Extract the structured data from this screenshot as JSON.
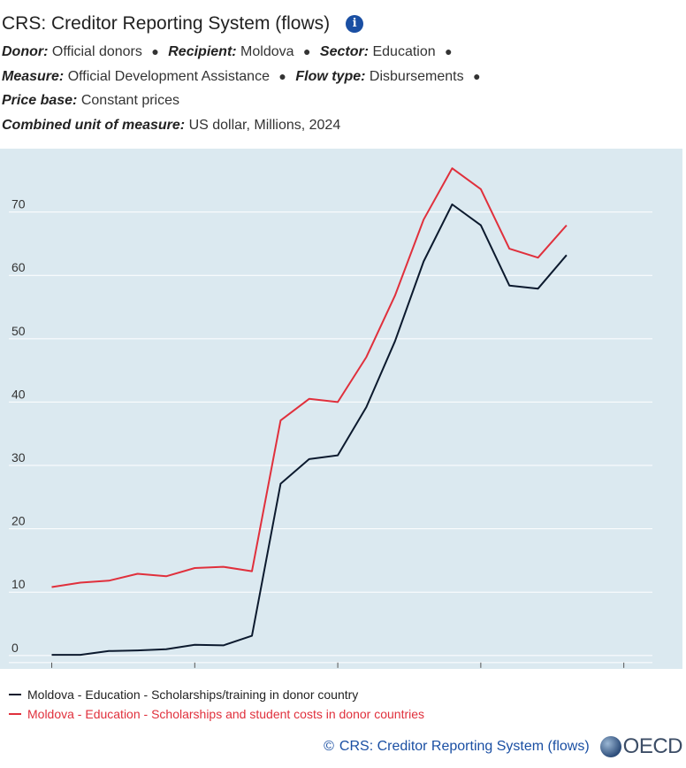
{
  "header": {
    "title": "CRS: Creditor Reporting System (flows)",
    "info_icon": "i",
    "filters_line1": [
      {
        "label": "Donor:",
        "value": "Official donors"
      },
      {
        "label": "Recipient:",
        "value": "Moldova"
      },
      {
        "label": "Sector:",
        "value": "Education"
      }
    ],
    "filters_line2": [
      {
        "label": "Measure:",
        "value": "Official Development Assistance"
      },
      {
        "label": "Flow type:",
        "value": "Disbursements"
      }
    ],
    "price_base": {
      "label": "Price base:",
      "value": "Constant prices"
    },
    "unit": {
      "label": "Combined unit of measure:",
      "value": "US dollar, Millions, 2024"
    },
    "separator": "●"
  },
  "chart_data": {
    "type": "line",
    "xlim": [
      2004.5,
      2027
    ],
    "ylim": [
      -1,
      80
    ],
    "x_ticks": [
      2006,
      2011,
      2016,
      2021,
      2026
    ],
    "y_ticks": [
      0,
      10,
      20,
      30,
      40,
      50,
      60,
      70
    ],
    "grid": true,
    "legend_position": "bottom",
    "series": [
      {
        "name": "Moldova - Education - Scholarships/training in donor country",
        "color": "#0c1a2e",
        "x": [
          2006,
          2007,
          2008,
          2009,
          2010,
          2011,
          2012,
          2013,
          2014,
          2015,
          2016,
          2017,
          2018,
          2019,
          2020,
          2021,
          2022,
          2023,
          2024
        ],
        "values": [
          0.1,
          0.1,
          0.7,
          0.8,
          1.0,
          1.7,
          1.6,
          3.1,
          27.1,
          31.0,
          31.6,
          39.2,
          49.6,
          62.2,
          71.2,
          67.9,
          58.4,
          57.9,
          63.2
        ]
      },
      {
        "name": "Moldova - Education - Scholarships and student costs in donor countries",
        "color": "#e0303c",
        "x": [
          2006,
          2007,
          2008,
          2009,
          2010,
          2011,
          2012,
          2013,
          2014,
          2015,
          2016,
          2017,
          2018,
          2019,
          2020,
          2021,
          2022,
          2023,
          2024
        ],
        "values": [
          10.8,
          11.5,
          11.8,
          12.9,
          12.5,
          13.8,
          14.0,
          13.3,
          37.1,
          40.5,
          40.0,
          47.1,
          56.8,
          68.8,
          76.9,
          73.6,
          64.2,
          62.8,
          67.9
        ]
      }
    ]
  },
  "footer": {
    "copyright": "©",
    "source_link": "CRS: Creditor Reporting System (flows)",
    "logo_text": "OECD"
  }
}
